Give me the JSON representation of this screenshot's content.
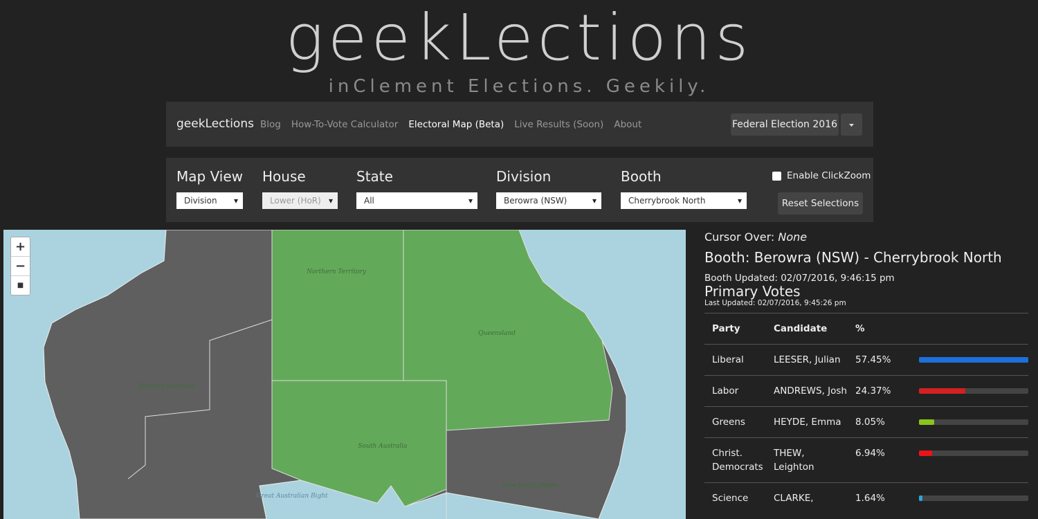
{
  "header": {
    "logo": "geekLections",
    "tagline": "inClement Elections. Geekily."
  },
  "nav": {
    "brand": "geekLections",
    "links": [
      "Blog",
      "How-To-Vote Calculator",
      "Electoral Map (Beta)",
      "Live Results (Soon)",
      "About"
    ],
    "election": "Federal Election 2016"
  },
  "filters": {
    "fields": [
      {
        "label": "Map View",
        "value": "Division"
      },
      {
        "label": "House",
        "value": "Lower (HoR)"
      },
      {
        "label": "State",
        "value": "All"
      },
      {
        "label": "Division",
        "value": "Berowra (NSW)"
      },
      {
        "label": "Booth",
        "value": "Cherrybrook North"
      }
    ],
    "clickzoom": "Enable ClickZoom",
    "reset": "Reset Selections"
  },
  "map": {
    "zoom_in": "+",
    "zoom_out": "−",
    "labels": [
      "Northern Territory",
      "Queensland",
      "Western Australia",
      "South Australia",
      "New South Wales",
      "Great Australian Bight"
    ]
  },
  "results": {
    "cursor_label": "Cursor Over:",
    "cursor_value": "None",
    "booth": "Booth: Berowra (NSW) - Cherrybrook North",
    "booth_updated": "Booth Updated: 02/07/2016, 9:46:15 pm",
    "heading": "Primary Votes",
    "last_updated": "Last Updated: 02/07/2016, 9:45:26 pm",
    "columns": [
      "Party",
      "Candidate",
      "%"
    ],
    "rows": [
      {
        "party": "Liberal",
        "candidate": "LEESER, Julian",
        "percent": {
          "value": 57.45,
          "label": "57.45%"
        },
        "color": "#1e6fd9"
      },
      {
        "party": "Labor",
        "candidate": "ANDREWS, Josh",
        "percent": {
          "value": 24.37,
          "label": "24.37%"
        },
        "color": "#d42020"
      },
      {
        "party": "Greens",
        "candidate": "HEYDE, Emma",
        "percent": {
          "value": 8.05,
          "label": "8.05%"
        },
        "color": "#8cc21d"
      },
      {
        "party": "Christ. Democrats",
        "candidate": "THEW, Leighton",
        "percent": {
          "value": 6.94,
          "label": "6.94%"
        },
        "color": "#e8141a"
      },
      {
        "party": "Science",
        "candidate": "CLARKE,",
        "percent": {
          "value": 1.64,
          "label": "1.64%"
        },
        "color": "#2aa6e0"
      }
    ]
  }
}
